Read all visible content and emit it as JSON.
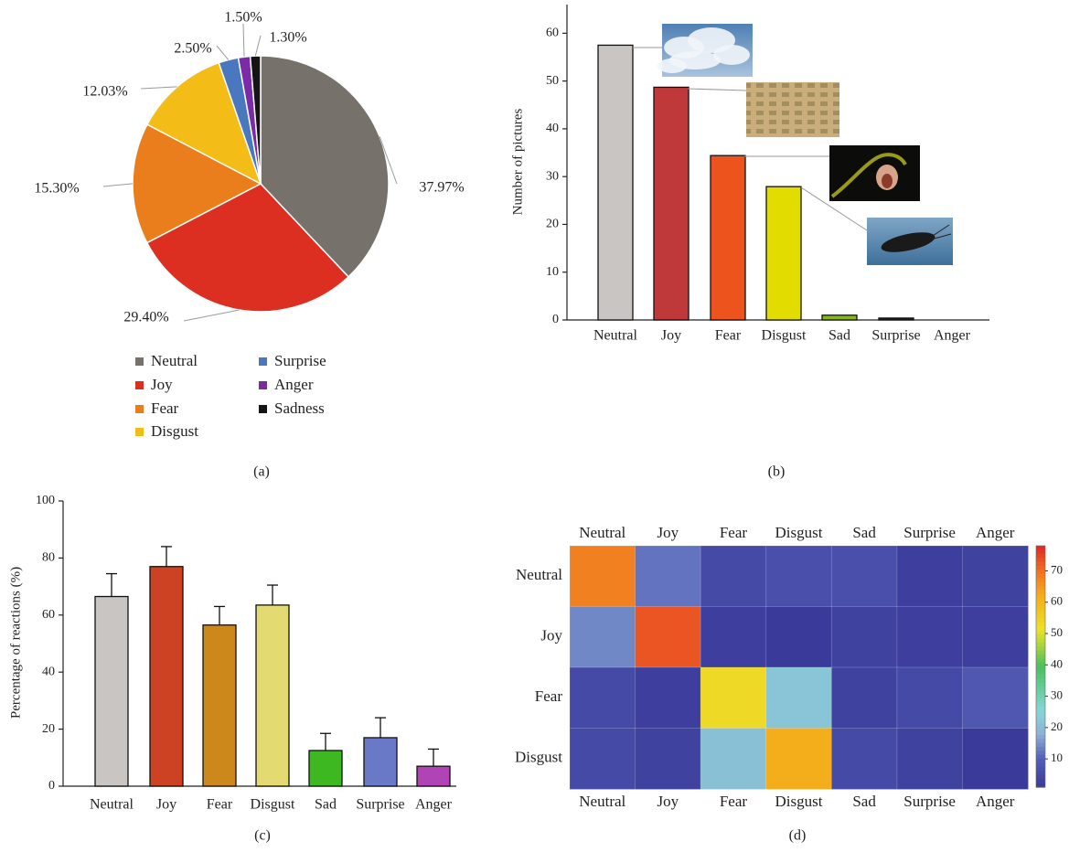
{
  "chart_data": [
    {
      "panel_label": "(a)",
      "type": "pie",
      "categories": [
        "Neutral",
        "Joy",
        "Fear",
        "Disgust",
        "Surprise",
        "Anger",
        "Sadness"
      ],
      "values": [
        37.97,
        29.4,
        15.3,
        12.03,
        2.5,
        1.5,
        1.3
      ],
      "value_labels": [
        "37.97%",
        "29.40%",
        "15.30%",
        "12.03%",
        "2.50%",
        "1.50%",
        "1.30%"
      ],
      "colors": [
        "#76716b",
        "#dd2e22",
        "#eb7e1c",
        "#f4bc16",
        "#4a78bf",
        "#7b2aa8",
        "#141414"
      ],
      "legend_placement": "bottom"
    },
    {
      "panel_label": "(b)",
      "type": "bar",
      "categories": [
        "Neutral",
        "Joy",
        "Fear",
        "Disgust",
        "Sad",
        "Surprise",
        "Anger"
      ],
      "values": [
        57.5,
        48.7,
        34.4,
        27.9,
        1.0,
        0.4,
        0
      ],
      "colors": [
        "#c8c5c3",
        "#c0393a",
        "#ec531d",
        "#e3dc00",
        "#86b81c",
        "#222222",
        "#888888"
      ],
      "ylabel": "Number of pictures",
      "ylim": [
        0,
        66
      ],
      "yticks": [
        0,
        10,
        20,
        30,
        40,
        50,
        60
      ],
      "grid": false,
      "thumbnails": [
        "clouds-thumbnail",
        "money-thumbnail",
        "snake-thumbnail",
        "cockroach-thumbnail"
      ]
    },
    {
      "panel_label": "(c)",
      "type": "bar",
      "categories": [
        "Neutral",
        "Joy",
        "Fear",
        "Disgust",
        "Sad",
        "Surprise",
        "Anger"
      ],
      "values": [
        66.5,
        77,
        56.5,
        63.5,
        12.5,
        17,
        7
      ],
      "errors": [
        8,
        7,
        6.5,
        7,
        6,
        7,
        6
      ],
      "colors": [
        "#c8c5c3",
        "#cd4223",
        "#cc881b",
        "#e4da72",
        "#3eb820",
        "#6a78c8",
        "#b044b6"
      ],
      "ylabel": "Percentage of reactions (%)",
      "ylim": [
        0,
        100
      ],
      "yticks": [
        0,
        20,
        40,
        60,
        80,
        100
      ],
      "grid": false
    },
    {
      "panel_label": "(d)",
      "type": "heatmap",
      "x_categories": [
        "Neutral",
        "Joy",
        "Fear",
        "Disgust",
        "Sad",
        "Surprise",
        "Anger"
      ],
      "y_categories": [
        "Neutral",
        "Joy",
        "Fear",
        "Disgust"
      ],
      "matrix": [
        [
          68,
          12,
          5,
          6,
          6,
          2,
          3
        ],
        [
          14,
          73,
          2,
          1,
          3,
          2,
          2
        ],
        [
          5,
          2,
          53,
          22,
          3,
          5,
          8
        ],
        [
          5,
          3,
          21,
          62,
          5,
          3,
          1
        ]
      ],
      "colorbar_ticks": [
        10,
        20,
        30,
        40,
        50,
        60,
        70
      ],
      "colorbar_range": [
        1,
        78
      ]
    }
  ]
}
